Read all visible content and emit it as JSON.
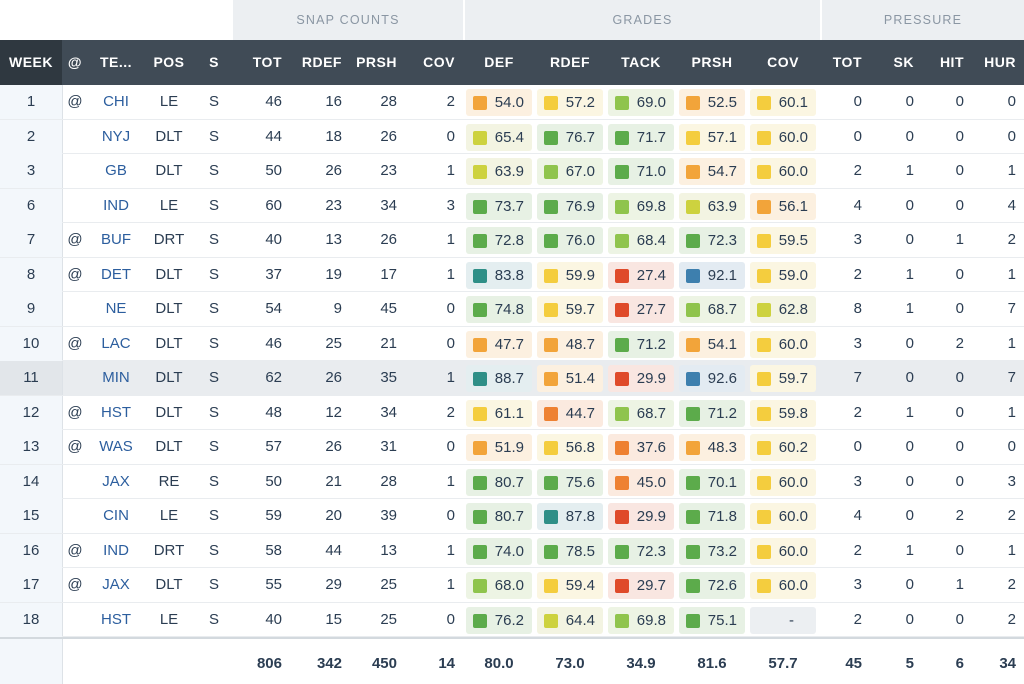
{
  "groups": {
    "snap_counts": "SNAP COUNTS",
    "grades": "GRADES",
    "pressure": "PRESSURE"
  },
  "headers": {
    "week": "WEEK",
    "at": "@",
    "team": "TE...",
    "pos": "POS",
    "s": "S",
    "tot": "TOT",
    "rdef": "RDEF",
    "prsh": "PRSH",
    "cov": "COV",
    "g_def": "DEF",
    "g_rdef": "RDEF",
    "g_tack": "TACK",
    "g_prsh": "PRSH",
    "g_cov": "COV",
    "p_tot": "TOT",
    "p_sk": "SK",
    "p_hit": "HIT",
    "p_hur": "HUR"
  },
  "grade_colors": {
    "dark_teal": "#2f8f87",
    "blue": "#3d7fae",
    "green": "#5cab4b",
    "light_green": "#8fc44d",
    "yellow_green": "#cdd23f",
    "yellow": "#f4cd3e",
    "orange": "#f2a43a",
    "dark_orange": "#ee8132",
    "red": "#df4a2a"
  },
  "rows": [
    {
      "week": "1",
      "at": "@",
      "team": "CHI",
      "pos": "LE",
      "s": "S",
      "tot": "46",
      "rdef": "16",
      "prsh": "28",
      "cov": "2",
      "grades": [
        {
          "v": "54.0",
          "c": "orange"
        },
        {
          "v": "57.2",
          "c": "yellow"
        },
        {
          "v": "69.0",
          "c": "light_green"
        },
        {
          "v": "52.5",
          "c": "orange"
        },
        {
          "v": "60.1",
          "c": "yellow"
        }
      ],
      "ptot": "0",
      "sk": "0",
      "hit": "0",
      "hur": "0"
    },
    {
      "week": "2",
      "at": "",
      "team": "NYJ",
      "pos": "DLT",
      "s": "S",
      "tot": "44",
      "rdef": "18",
      "prsh": "26",
      "cov": "0",
      "grades": [
        {
          "v": "65.4",
          "c": "yellow_green"
        },
        {
          "v": "76.7",
          "c": "green"
        },
        {
          "v": "71.7",
          "c": "green"
        },
        {
          "v": "57.1",
          "c": "yellow"
        },
        {
          "v": "60.0",
          "c": "yellow"
        }
      ],
      "ptot": "0",
      "sk": "0",
      "hit": "0",
      "hur": "0"
    },
    {
      "week": "3",
      "at": "",
      "team": "GB",
      "pos": "DLT",
      "s": "S",
      "tot": "50",
      "rdef": "26",
      "prsh": "23",
      "cov": "1",
      "grades": [
        {
          "v": "63.9",
          "c": "yellow_green"
        },
        {
          "v": "67.0",
          "c": "light_green"
        },
        {
          "v": "71.0",
          "c": "green"
        },
        {
          "v": "54.7",
          "c": "orange"
        },
        {
          "v": "60.0",
          "c": "yellow"
        }
      ],
      "ptot": "2",
      "sk": "1",
      "hit": "0",
      "hur": "1"
    },
    {
      "week": "6",
      "at": "",
      "team": "IND",
      "pos": "LE",
      "s": "S",
      "tot": "60",
      "rdef": "23",
      "prsh": "34",
      "cov": "3",
      "grades": [
        {
          "v": "73.7",
          "c": "green"
        },
        {
          "v": "76.9",
          "c": "green"
        },
        {
          "v": "69.8",
          "c": "light_green"
        },
        {
          "v": "63.9",
          "c": "yellow_green"
        },
        {
          "v": "56.1",
          "c": "orange"
        }
      ],
      "ptot": "4",
      "sk": "0",
      "hit": "0",
      "hur": "4"
    },
    {
      "week": "7",
      "at": "@",
      "team": "BUF",
      "pos": "DRT",
      "s": "S",
      "tot": "40",
      "rdef": "13",
      "prsh": "26",
      "cov": "1",
      "grades": [
        {
          "v": "72.8",
          "c": "green"
        },
        {
          "v": "76.0",
          "c": "green"
        },
        {
          "v": "68.4",
          "c": "light_green"
        },
        {
          "v": "72.3",
          "c": "green"
        },
        {
          "v": "59.5",
          "c": "yellow"
        }
      ],
      "ptot": "3",
      "sk": "0",
      "hit": "1",
      "hur": "2"
    },
    {
      "week": "8",
      "at": "@",
      "team": "DET",
      "pos": "DLT",
      "s": "S",
      "tot": "37",
      "rdef": "19",
      "prsh": "17",
      "cov": "1",
      "grades": [
        {
          "v": "83.8",
          "c": "dark_teal"
        },
        {
          "v": "59.9",
          "c": "yellow"
        },
        {
          "v": "27.4",
          "c": "red"
        },
        {
          "v": "92.1",
          "c": "blue"
        },
        {
          "v": "59.0",
          "c": "yellow"
        }
      ],
      "ptot": "2",
      "sk": "1",
      "hit": "0",
      "hur": "1"
    },
    {
      "week": "9",
      "at": "",
      "team": "NE",
      "pos": "DLT",
      "s": "S",
      "tot": "54",
      "rdef": "9",
      "prsh": "45",
      "cov": "0",
      "grades": [
        {
          "v": "74.8",
          "c": "green"
        },
        {
          "v": "59.7",
          "c": "yellow"
        },
        {
          "v": "27.7",
          "c": "red"
        },
        {
          "v": "68.7",
          "c": "light_green"
        },
        {
          "v": "62.8",
          "c": "yellow_green"
        }
      ],
      "ptot": "8",
      "sk": "1",
      "hit": "0",
      "hur": "7"
    },
    {
      "week": "10",
      "at": "@",
      "team": "LAC",
      "pos": "DLT",
      "s": "S",
      "tot": "46",
      "rdef": "25",
      "prsh": "21",
      "cov": "0",
      "grades": [
        {
          "v": "47.7",
          "c": "orange"
        },
        {
          "v": "48.7",
          "c": "orange"
        },
        {
          "v": "71.2",
          "c": "green"
        },
        {
          "v": "54.1",
          "c": "orange"
        },
        {
          "v": "60.0",
          "c": "yellow"
        }
      ],
      "ptot": "3",
      "sk": "0",
      "hit": "2",
      "hur": "1"
    },
    {
      "week": "11",
      "at": "",
      "team": "MIN",
      "pos": "DLT",
      "s": "S",
      "tot": "62",
      "rdef": "26",
      "prsh": "35",
      "cov": "1",
      "hl": true,
      "grades": [
        {
          "v": "88.7",
          "c": "dark_teal"
        },
        {
          "v": "51.4",
          "c": "orange"
        },
        {
          "v": "29.9",
          "c": "red"
        },
        {
          "v": "92.6",
          "c": "blue"
        },
        {
          "v": "59.7",
          "c": "yellow"
        }
      ],
      "ptot": "7",
      "sk": "0",
      "hit": "0",
      "hur": "7"
    },
    {
      "week": "12",
      "at": "@",
      "team": "HST",
      "pos": "DLT",
      "s": "S",
      "tot": "48",
      "rdef": "12",
      "prsh": "34",
      "cov": "2",
      "grades": [
        {
          "v": "61.1",
          "c": "yellow"
        },
        {
          "v": "44.7",
          "c": "dark_orange"
        },
        {
          "v": "68.7",
          "c": "light_green"
        },
        {
          "v": "71.2",
          "c": "green"
        },
        {
          "v": "59.8",
          "c": "yellow"
        }
      ],
      "ptot": "2",
      "sk": "1",
      "hit": "0",
      "hur": "1"
    },
    {
      "week": "13",
      "at": "@",
      "team": "WAS",
      "pos": "DLT",
      "s": "S",
      "tot": "57",
      "rdef": "26",
      "prsh": "31",
      "cov": "0",
      "grades": [
        {
          "v": "51.9",
          "c": "orange"
        },
        {
          "v": "56.8",
          "c": "yellow"
        },
        {
          "v": "37.6",
          "c": "dark_orange"
        },
        {
          "v": "48.3",
          "c": "orange"
        },
        {
          "v": "60.2",
          "c": "yellow"
        }
      ],
      "ptot": "0",
      "sk": "0",
      "hit": "0",
      "hur": "0"
    },
    {
      "week": "14",
      "at": "",
      "team": "JAX",
      "pos": "RE",
      "s": "S",
      "tot": "50",
      "rdef": "21",
      "prsh": "28",
      "cov": "1",
      "grades": [
        {
          "v": "80.7",
          "c": "green"
        },
        {
          "v": "75.6",
          "c": "green"
        },
        {
          "v": "45.0",
          "c": "dark_orange"
        },
        {
          "v": "70.1",
          "c": "green"
        },
        {
          "v": "60.0",
          "c": "yellow"
        }
      ],
      "ptot": "3",
      "sk": "0",
      "hit": "0",
      "hur": "3"
    },
    {
      "week": "15",
      "at": "",
      "team": "CIN",
      "pos": "LE",
      "s": "S",
      "tot": "59",
      "rdef": "20",
      "prsh": "39",
      "cov": "0",
      "grades": [
        {
          "v": "80.7",
          "c": "green"
        },
        {
          "v": "87.8",
          "c": "dark_teal"
        },
        {
          "v": "29.9",
          "c": "red"
        },
        {
          "v": "71.8",
          "c": "green"
        },
        {
          "v": "60.0",
          "c": "yellow"
        }
      ],
      "ptot": "4",
      "sk": "0",
      "hit": "2",
      "hur": "2"
    },
    {
      "week": "16",
      "at": "@",
      "team": "IND",
      "pos": "DRT",
      "s": "S",
      "tot": "58",
      "rdef": "44",
      "prsh": "13",
      "cov": "1",
      "grades": [
        {
          "v": "74.0",
          "c": "green"
        },
        {
          "v": "78.5",
          "c": "green"
        },
        {
          "v": "72.3",
          "c": "green"
        },
        {
          "v": "73.2",
          "c": "green"
        },
        {
          "v": "60.0",
          "c": "yellow"
        }
      ],
      "ptot": "2",
      "sk": "1",
      "hit": "0",
      "hur": "1"
    },
    {
      "week": "17",
      "at": "@",
      "team": "JAX",
      "pos": "DLT",
      "s": "S",
      "tot": "55",
      "rdef": "29",
      "prsh": "25",
      "cov": "1",
      "grades": [
        {
          "v": "68.0",
          "c": "light_green"
        },
        {
          "v": "59.4",
          "c": "yellow"
        },
        {
          "v": "29.7",
          "c": "red"
        },
        {
          "v": "72.6",
          "c": "green"
        },
        {
          "v": "60.0",
          "c": "yellow"
        }
      ],
      "ptot": "3",
      "sk": "0",
      "hit": "1",
      "hur": "2"
    },
    {
      "week": "18",
      "at": "",
      "team": "HST",
      "pos": "LE",
      "s": "S",
      "tot": "40",
      "rdef": "15",
      "prsh": "25",
      "cov": "0",
      "grades": [
        {
          "v": "76.2",
          "c": "green"
        },
        {
          "v": "64.4",
          "c": "yellow_green"
        },
        {
          "v": "69.8",
          "c": "light_green"
        },
        {
          "v": "75.1",
          "c": "green"
        },
        {
          "v": "-",
          "c": ""
        }
      ],
      "ptot": "2",
      "sk": "0",
      "hit": "0",
      "hur": "2"
    }
  ],
  "totals": {
    "tot": "806",
    "rdef": "342",
    "prsh": "450",
    "cov": "14",
    "g_def": "80.0",
    "g_rdef": "73.0",
    "g_tack": "34.9",
    "g_prsh": "81.6",
    "g_cov": "57.7",
    "ptot": "45",
    "sk": "5",
    "hit": "6",
    "hur": "34"
  }
}
